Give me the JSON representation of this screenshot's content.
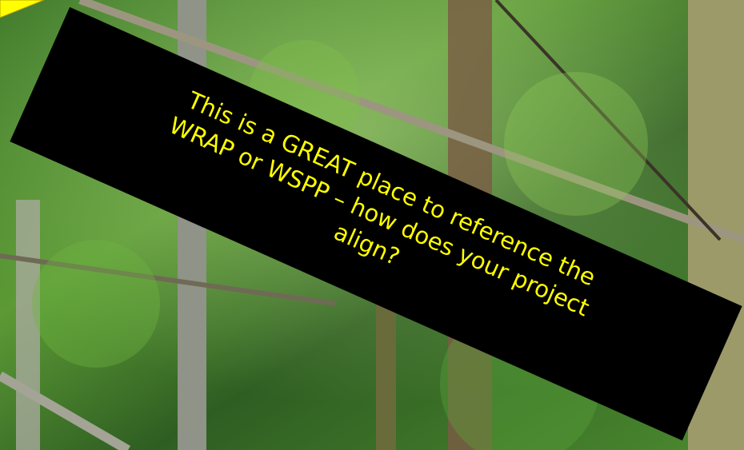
{
  "callout": {
    "lines": [
      "This is a GREAT place to reference the",
      "WRAP or WSPP – how does your project",
      "align?"
    ]
  }
}
